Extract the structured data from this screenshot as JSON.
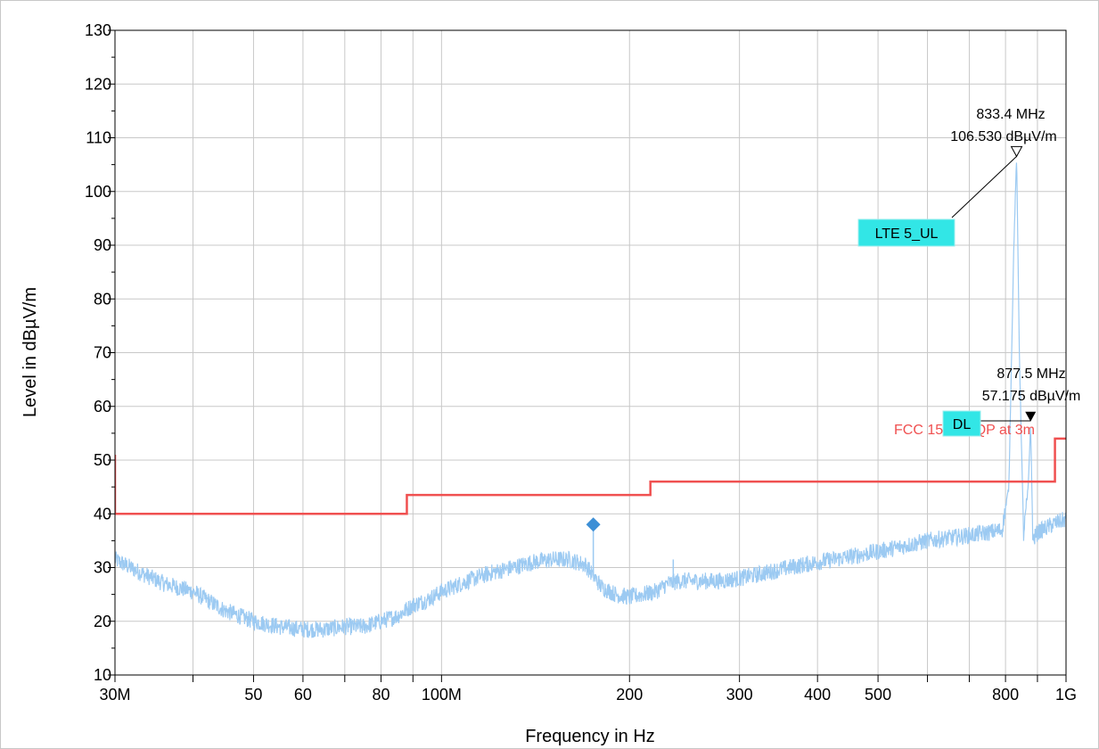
{
  "chart_data": {
    "type": "line",
    "xlabel": "Frequency in Hz",
    "ylabel": "Level in dBµV/m",
    "xscale": "log",
    "xlim": [
      30000000,
      1000000000
    ],
    "ylim": [
      10,
      130
    ],
    "grid": true,
    "y_ticks": [
      {
        "value": 10,
        "label": "10"
      },
      {
        "value": 20,
        "label": "20"
      },
      {
        "value": 30,
        "label": "30"
      },
      {
        "value": 40,
        "label": "40"
      },
      {
        "value": 50,
        "label": "50"
      },
      {
        "value": 60,
        "label": "60"
      },
      {
        "value": 70,
        "label": "70"
      },
      {
        "value": 80,
        "label": "80"
      },
      {
        "value": 90,
        "label": "90"
      },
      {
        "value": 100,
        "label": "100"
      },
      {
        "value": 110,
        "label": "110"
      },
      {
        "value": 120,
        "label": "120"
      },
      {
        "value": 130,
        "label": "130"
      }
    ],
    "x_ticks": [
      {
        "value": 30000000,
        "label": "30M"
      },
      {
        "value": 40000000,
        "label": ""
      },
      {
        "value": 50000000,
        "label": "50"
      },
      {
        "value": 60000000,
        "label": "60"
      },
      {
        "value": 70000000,
        "label": ""
      },
      {
        "value": 80000000,
        "label": "80"
      },
      {
        "value": 90000000,
        "label": ""
      },
      {
        "value": 100000000,
        "label": "100M"
      },
      {
        "value": 200000000,
        "label": "200"
      },
      {
        "value": 300000000,
        "label": "300"
      },
      {
        "value": 400000000,
        "label": "400"
      },
      {
        "value": 500000000,
        "label": "500"
      },
      {
        "value": 600000000,
        "label": ""
      },
      {
        "value": 700000000,
        "label": ""
      },
      {
        "value": 800000000,
        "label": "800"
      },
      {
        "value": 900000000,
        "label": ""
      },
      {
        "value": 1000000000,
        "label": "1G"
      }
    ],
    "series": [
      {
        "name": "",
        "style": "noise-trace",
        "color": "#9ccaf2",
        "x": [
          30000000,
          33000000,
          36000000,
          40000000,
          45000000,
          50000000,
          55000000,
          60000000,
          65000000,
          70000000,
          75000000,
          80000000,
          85000000,
          90000000,
          95000000,
          100000000,
          110000000,
          120000000,
          130000000,
          140000000,
          150000000,
          160000000,
          170000000,
          175000000,
          180000000,
          190000000,
          200000000,
          210000000,
          220000000,
          230000000,
          240000000,
          260000000,
          280000000,
          300000000,
          330000000,
          360000000,
          400000000,
          450000000,
          500000000,
          550000000,
          600000000,
          650000000,
          700000000,
          750000000,
          790000000,
          810000000,
          825000000,
          833400000,
          842000000,
          855000000,
          870000000,
          877500000,
          885000000,
          900000000,
          950000000,
          1000000000
        ],
        "y": [
          31.5,
          29,
          27,
          25.5,
          22,
          20,
          19,
          18.5,
          18.5,
          19,
          19,
          20,
          21,
          23,
          24,
          25.5,
          27.5,
          29,
          30,
          31,
          31.5,
          31.5,
          30.5,
          28.5,
          26.5,
          25,
          24.5,
          25,
          25.5,
          27,
          27.5,
          27.5,
          27.5,
          28,
          29,
          30,
          31,
          32,
          33,
          34,
          35,
          35.5,
          36,
          36.5,
          37,
          45,
          90,
          106.5,
          70,
          36,
          45,
          57,
          35,
          36.5,
          38,
          39
        ]
      },
      {
        "name": "FCC 15.109 QP at 3m",
        "style": "limit",
        "color": "#f05050",
        "x": [
          30000000,
          30000000,
          88000000,
          88000000,
          216000000,
          216000000,
          960000000,
          960000000,
          1000000000
        ],
        "y": [
          51,
          40,
          40,
          43.5,
          43.5,
          46,
          46,
          54,
          54
        ]
      }
    ],
    "spikes": [
      {
        "x": 175000000,
        "y": 37.5
      },
      {
        "x": 235000000,
        "y": 31.5
      }
    ],
    "diamond_marker": {
      "x": 175000000,
      "y": 38,
      "color": "#3d8fd6"
    },
    "limit_label": "FCC 15.109 QP at 3m",
    "markers": [
      {
        "id": "lte",
        "freq_label": "833.4 MHz",
        "level_label": "106.530 dBµV/m",
        "x": 833400000,
        "y": 106.53,
        "symbol": "open-triangle",
        "box_label": "LTE 5_UL"
      },
      {
        "id": "dl",
        "freq_label": "877.5 MHz",
        "level_label": "57.175 dBµV/m",
        "x": 877500000,
        "y": 57.175,
        "symbol": "filled-triangle",
        "box_label": "DL"
      }
    ],
    "colors": {
      "trace": "#9ccaf2",
      "limit": "#f05050",
      "label_box": "#32e6e6",
      "grid": "#c8c8c8"
    }
  }
}
